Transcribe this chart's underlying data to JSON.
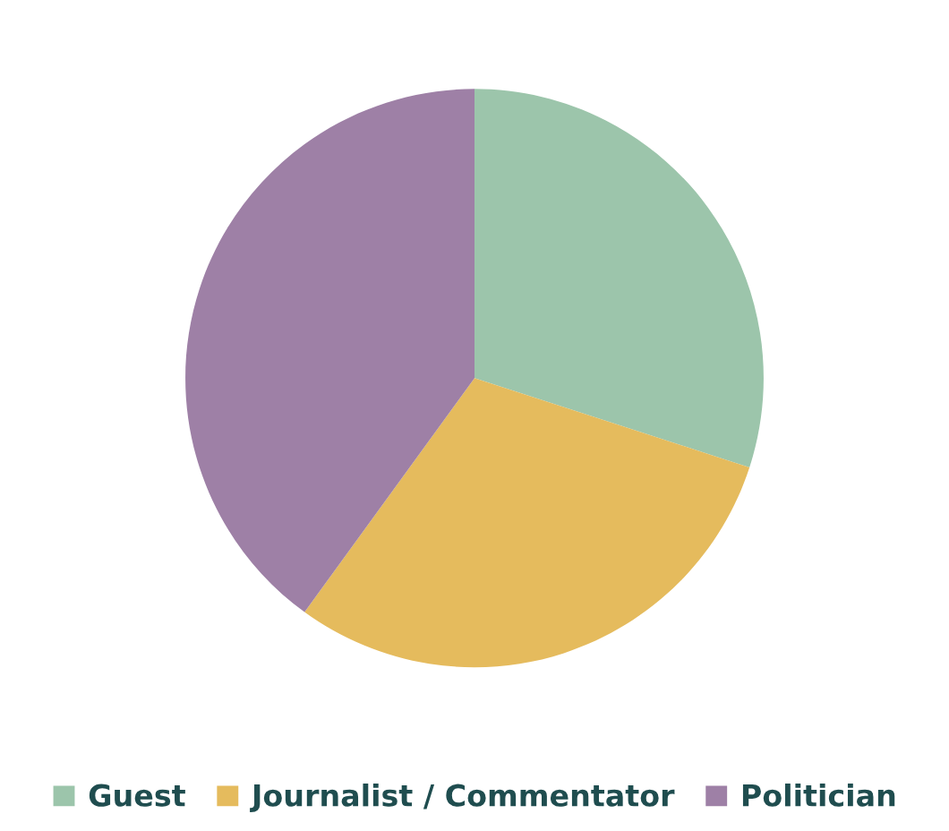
{
  "chart_data": {
    "type": "pie",
    "categories": [
      "Guest",
      "Journalist / Commentator",
      "Politician"
    ],
    "values": [
      30,
      30,
      40
    ],
    "colors": [
      "#9cc5ab",
      "#e5bb5d",
      "#9e80a6"
    ],
    "legend": "bottom"
  }
}
